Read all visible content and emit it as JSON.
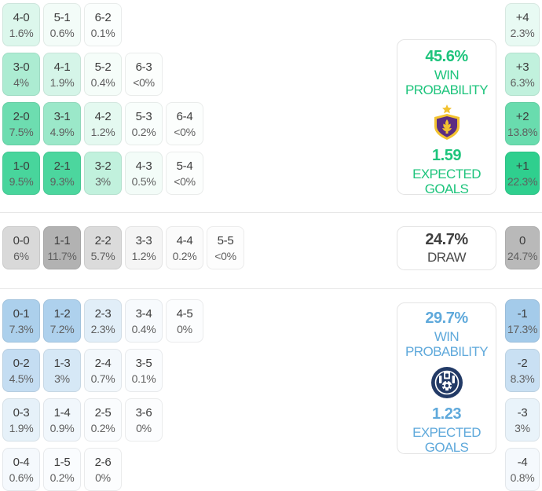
{
  "colors": {
    "home_base": "#2fcf8e",
    "draw_base": "#7f7f7f",
    "away_base": "#569fd9",
    "home_text": "#1dc47c",
    "away_text": "#5fa9db",
    "draw_text": "#3f3f3f"
  },
  "sections": {
    "home": {
      "base_color": "#2fcf8e",
      "panel": {
        "probability": "45.6%",
        "label_line1": "WIN",
        "label_line2": "PROBABILITY",
        "goals": "1.59",
        "goals_line1": "EXPECTED",
        "goals_line2": "GOALS",
        "crest": "home-team-crest"
      },
      "rows": [
        {
          "cells": [
            {
              "score": "4-0",
              "pct": "1.6%",
              "tint": 0.17
            },
            {
              "score": "5-1",
              "pct": "0.6%",
              "tint": 0.06
            },
            {
              "score": "6-2",
              "pct": "0.1%",
              "tint": 0.02
            }
          ],
          "margin": {
            "score": "+4",
            "pct": "2.3%",
            "tint": 0.11
          }
        },
        {
          "cells": [
            {
              "score": "3-0",
              "pct": "4%",
              "tint": 0.4
            },
            {
              "score": "4-1",
              "pct": "1.9%",
              "tint": 0.2
            },
            {
              "score": "5-2",
              "pct": "0.4%",
              "tint": 0.05
            },
            {
              "score": "6-3",
              "pct": "<0%",
              "tint": 0.015
            }
          ],
          "margin": {
            "score": "+3",
            "pct": "6.3%",
            "tint": 0.3
          }
        },
        {
          "cells": [
            {
              "score": "2-0",
              "pct": "7.5%",
              "tint": 0.7
            },
            {
              "score": "3-1",
              "pct": "4.9%",
              "tint": 0.48
            },
            {
              "score": "4-2",
              "pct": "1.2%",
              "tint": 0.13
            },
            {
              "score": "5-3",
              "pct": "0.2%",
              "tint": 0.03
            },
            {
              "score": "6-4",
              "pct": "<0%",
              "tint": 0.015
            }
          ],
          "margin": {
            "score": "+2",
            "pct": "13.8%",
            "tint": 0.72
          }
        },
        {
          "cells": [
            {
              "score": "1-0",
              "pct": "9.5%",
              "tint": 0.88
            },
            {
              "score": "2-1",
              "pct": "9.3%",
              "tint": 0.86
            },
            {
              "score": "3-2",
              "pct": "3%",
              "tint": 0.3
            },
            {
              "score": "4-3",
              "pct": "0.5%",
              "tint": 0.06
            },
            {
              "score": "5-4",
              "pct": "<0%",
              "tint": 0.015
            }
          ],
          "margin": {
            "score": "+1",
            "pct": "22.3%",
            "tint": 1.0
          }
        }
      ]
    },
    "draw": {
      "base_color": "#7f7f7f",
      "panel": {
        "probability": "24.7%",
        "label": "DRAW"
      },
      "rows": [
        {
          "cells": [
            {
              "score": "0-0",
              "pct": "6%",
              "tint": 0.3
            },
            {
              "score": "1-1",
              "pct": "11.7%",
              "tint": 0.6
            },
            {
              "score": "2-2",
              "pct": "5.7%",
              "tint": 0.28
            },
            {
              "score": "3-3",
              "pct": "1.2%",
              "tint": 0.08
            },
            {
              "score": "4-4",
              "pct": "0.2%",
              "tint": 0.03
            },
            {
              "score": "5-5",
              "pct": "<0%",
              "tint": 0.015
            }
          ],
          "margin": {
            "score": "0",
            "pct": "24.7%",
            "tint": 0.55
          }
        }
      ]
    },
    "away": {
      "base_color": "#569fd9",
      "panel": {
        "probability": "29.7%",
        "label_line1": "WIN",
        "label_line2": "PROBABILITY",
        "goals": "1.23",
        "goals_line1": "EXPECTED",
        "goals_line2": "GOALS",
        "crest": "away-team-crest"
      },
      "rows": [
        {
          "cells": [
            {
              "score": "0-1",
              "pct": "7.3%",
              "tint": 0.49
            },
            {
              "score": "1-2",
              "pct": "7.2%",
              "tint": 0.48
            },
            {
              "score": "2-3",
              "pct": "2.3%",
              "tint": 0.18
            },
            {
              "score": "3-4",
              "pct": "0.4%",
              "tint": 0.05
            },
            {
              "score": "4-5",
              "pct": "0%",
              "tint": 0.02
            }
          ],
          "margin": {
            "score": "-1",
            "pct": "17.3%",
            "tint": 0.54
          }
        },
        {
          "cells": [
            {
              "score": "0-2",
              "pct": "4.5%",
              "tint": 0.35
            },
            {
              "score": "1-3",
              "pct": "3%",
              "tint": 0.24
            },
            {
              "score": "2-4",
              "pct": "0.7%",
              "tint": 0.07
            },
            {
              "score": "3-5",
              "pct": "0.1%",
              "tint": 0.03
            }
          ],
          "margin": {
            "score": "-2",
            "pct": "8.3%",
            "tint": 0.32
          }
        },
        {
          "cells": [
            {
              "score": "0-3",
              "pct": "1.9%",
              "tint": 0.15
            },
            {
              "score": "1-4",
              "pct": "0.9%",
              "tint": 0.08
            },
            {
              "score": "2-5",
              "pct": "0.2%",
              "tint": 0.03
            },
            {
              "score": "3-6",
              "pct": "0%",
              "tint": 0.02
            }
          ],
          "margin": {
            "score": "-3",
            "pct": "3%",
            "tint": 0.13
          }
        },
        {
          "cells": [
            {
              "score": "0-4",
              "pct": "0.6%",
              "tint": 0.06
            },
            {
              "score": "1-5",
              "pct": "0.2%",
              "tint": 0.03
            },
            {
              "score": "2-6",
              "pct": "0%",
              "tint": 0.02
            }
          ],
          "margin": {
            "score": "-4",
            "pct": "0.8%",
            "tint": 0.06
          }
        }
      ]
    }
  }
}
